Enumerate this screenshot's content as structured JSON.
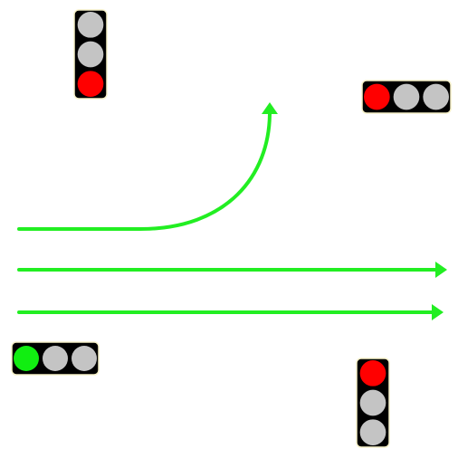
{
  "colors": {
    "background": "#ffffff",
    "arrow": "#22ee22",
    "housing": "#000000",
    "housing_border": "#f5f0c8",
    "lamp_off": "#c4c4c4",
    "lamp_red": "#ff0000",
    "lamp_green": "#11ee11"
  },
  "traffic_lights": [
    {
      "id": "north",
      "orientation": "vertical",
      "lamps": [
        "off",
        "off",
        "red"
      ]
    },
    {
      "id": "east",
      "orientation": "horizontal",
      "lamps": [
        "red",
        "off",
        "off"
      ]
    },
    {
      "id": "west",
      "orientation": "horizontal",
      "lamps": [
        "green",
        "off",
        "off"
      ]
    },
    {
      "id": "south",
      "orientation": "vertical",
      "lamps": [
        "red",
        "off",
        "off"
      ]
    }
  ],
  "arrows": [
    {
      "id": "left-turn",
      "type": "turn-left"
    },
    {
      "id": "straight-upper",
      "type": "straight"
    },
    {
      "id": "straight-lower",
      "type": "straight"
    }
  ]
}
